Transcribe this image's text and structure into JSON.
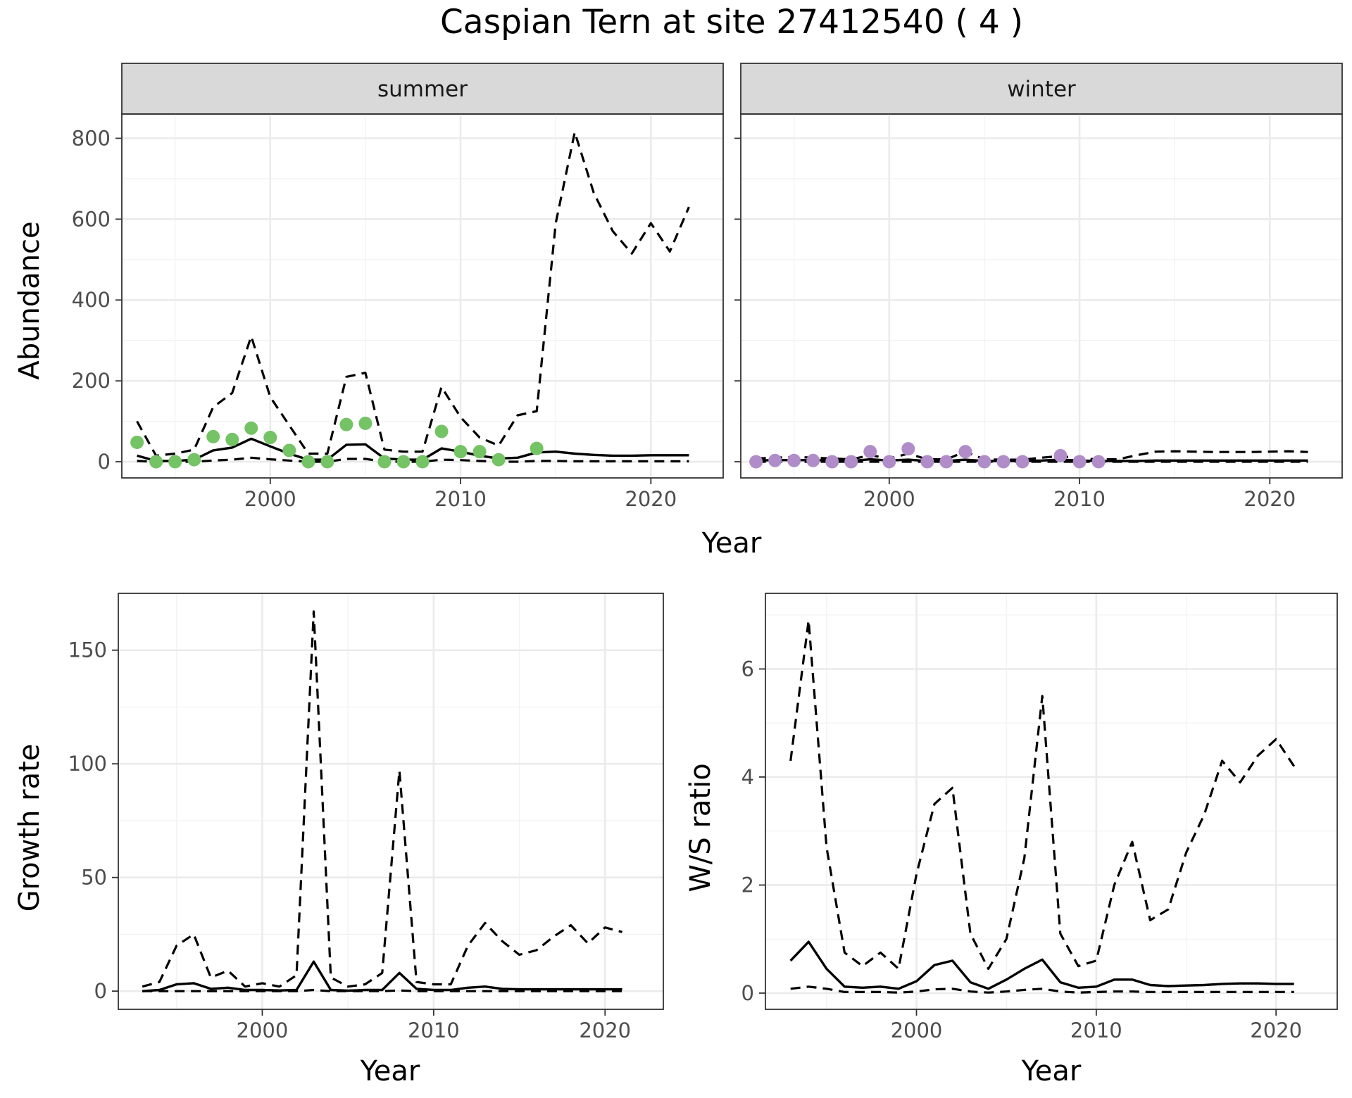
{
  "title": "Caspian Tern at site 27412540 ( 4 )",
  "chart_data": [
    {
      "type": "line",
      "facet": "summer",
      "xlabel": "Year",
      "ylabel": "Abundance",
      "xlim": [
        1992.2,
        2023.8
      ],
      "ylim": [
        -40,
        860
      ],
      "xticks": [
        2000,
        2010,
        2020
      ],
      "yticks": [
        0,
        200,
        400,
        600,
        800
      ],
      "point_color": "#74c365",
      "observed": {
        "x": [
          1993,
          1994,
          1995,
          1996,
          1997,
          1998,
          1999,
          2000,
          2001,
          2002,
          2003,
          2004,
          2005,
          2006,
          2007,
          2008,
          2009,
          2010,
          2011,
          2012,
          2014
        ],
        "y": [
          48,
          0,
          0,
          5,
          62,
          55,
          83,
          60,
          28,
          0,
          0,
          92,
          95,
          0,
          0,
          0,
          75,
          25,
          25,
          5,
          33
        ]
      },
      "mean": {
        "x": [
          1993,
          1994,
          1995,
          1996,
          1997,
          1998,
          1999,
          2000,
          2001,
          2002,
          2003,
          2004,
          2005,
          2006,
          2007,
          2008,
          2009,
          2010,
          2011,
          2012,
          2013,
          2014,
          2015,
          2016,
          2017,
          2018,
          2019,
          2020,
          2021,
          2022
        ],
        "y": [
          15,
          2,
          2,
          5,
          28,
          35,
          57,
          38,
          20,
          5,
          5,
          42,
          43,
          8,
          5,
          5,
          33,
          25,
          15,
          8,
          10,
          23,
          25,
          20,
          17,
          15,
          15,
          16,
          16,
          16
        ]
      },
      "upper": {
        "x": [
          1993,
          1994,
          1995,
          1996,
          1997,
          1998,
          1999,
          2000,
          2001,
          2002,
          2003,
          2004,
          2005,
          2006,
          2007,
          2008,
          2009,
          2010,
          2011,
          2012,
          2013,
          2014,
          2015,
          2016,
          2017,
          2018,
          2019,
          2020,
          2021,
          2022
        ],
        "y": [
          100,
          15,
          20,
          30,
          135,
          170,
          310,
          160,
          90,
          20,
          20,
          210,
          220,
          30,
          25,
          25,
          185,
          110,
          60,
          40,
          115,
          125,
          590,
          815,
          665,
          570,
          515,
          590,
          520,
          630
        ]
      },
      "lower": {
        "x": [
          1993,
          1994,
          1995,
          1996,
          1997,
          1998,
          1999,
          2000,
          2001,
          2002,
          2003,
          2004,
          2005,
          2006,
          2007,
          2008,
          2009,
          2010,
          2011,
          2012,
          2013,
          2014,
          2015,
          2016,
          2017,
          2018,
          2019,
          2020,
          2021,
          2022
        ],
        "y": [
          2,
          0,
          0,
          0,
          3,
          5,
          10,
          6,
          3,
          0,
          0,
          7,
          7,
          0,
          0,
          0,
          5,
          4,
          2,
          0,
          0,
          2,
          2,
          1,
          1,
          1,
          1,
          1,
          1,
          1
        ]
      }
    },
    {
      "type": "line",
      "facet": "winter",
      "xlabel": "Year",
      "ylabel": "Abundance",
      "xlim": [
        1992.2,
        2023.8
      ],
      "ylim": [
        -40,
        860
      ],
      "xticks": [
        2000,
        2010,
        2020
      ],
      "yticks": [
        0,
        200,
        400,
        600,
        800
      ],
      "point_color": "#b08dc8",
      "observed": {
        "x": [
          1993,
          1994,
          1995,
          1996,
          1997,
          1998,
          1999,
          2000,
          2001,
          2002,
          2003,
          2004,
          2005,
          2006,
          2007,
          2009,
          2010,
          2011
        ],
        "y": [
          0,
          3,
          3,
          3,
          0,
          0,
          25,
          0,
          32,
          0,
          0,
          25,
          0,
          0,
          0,
          15,
          0,
          0
        ]
      },
      "mean": {
        "x": [
          1993,
          1994,
          1995,
          1996,
          1997,
          1998,
          1999,
          2000,
          2001,
          2002,
          2003,
          2004,
          2005,
          2006,
          2007,
          2008,
          2009,
          2010,
          2011,
          2012,
          2013,
          2014,
          2015,
          2016,
          2017,
          2018,
          2019,
          2020,
          2021,
          2022
        ],
        "y": [
          3,
          4,
          4,
          4,
          3,
          2,
          6,
          3,
          5,
          2,
          2,
          5,
          2,
          2,
          2,
          3,
          5,
          3,
          2,
          2,
          2,
          3,
          3,
          3,
          3,
          3,
          3,
          3,
          3,
          3
        ]
      },
      "upper": {
        "x": [
          1993,
          1994,
          1995,
          1996,
          1997,
          1998,
          1999,
          2000,
          2001,
          2002,
          2003,
          2004,
          2005,
          2006,
          2007,
          2008,
          2009,
          2010,
          2011,
          2012,
          2013,
          2014,
          2015,
          2016,
          2017,
          2018,
          2019,
          2020,
          2021,
          2022
        ],
        "y": [
          8,
          10,
          12,
          10,
          8,
          6,
          16,
          8,
          20,
          6,
          6,
          25,
          6,
          5,
          5,
          10,
          14,
          8,
          6,
          6,
          16,
          25,
          26,
          25,
          24,
          24,
          24,
          25,
          26,
          24
        ]
      },
      "lower": {
        "x": [
          1993,
          1994,
          1995,
          1996,
          1997,
          1998,
          1999,
          2000,
          2001,
          2002,
          2003,
          2004,
          2005,
          2006,
          2007,
          2008,
          2009,
          2010,
          2011,
          2012,
          2013,
          2014,
          2015,
          2016,
          2017,
          2018,
          2019,
          2020,
          2021,
          2022
        ],
        "y": [
          0,
          0,
          0,
          0,
          0,
          0,
          0,
          0,
          0,
          0,
          0,
          0,
          0,
          0,
          0,
          0,
          0,
          0,
          0,
          0,
          0,
          0,
          0,
          0,
          0,
          0,
          0,
          0,
          0,
          0
        ]
      }
    },
    {
      "type": "line",
      "xlabel": "Year",
      "ylabel": "Growth rate",
      "xlim": [
        1991.6,
        2023.4
      ],
      "ylim": [
        -8,
        175
      ],
      "xticks": [
        2000,
        2010,
        2020
      ],
      "yticks": [
        0,
        50,
        100,
        150
      ],
      "mean": {
        "x": [
          1993,
          1994,
          1995,
          1996,
          1997,
          1998,
          1999,
          2000,
          2001,
          2002,
          2003,
          2004,
          2005,
          2006,
          2007,
          2008,
          2009,
          2010,
          2011,
          2012,
          2013,
          2014,
          2015,
          2016,
          2017,
          2018,
          2019,
          2020,
          2021
        ],
        "y": [
          0,
          0.5,
          3,
          3.5,
          1,
          1.5,
          0.5,
          0.5,
          0.3,
          0.5,
          13,
          0.5,
          0.2,
          0.5,
          0.5,
          8,
          1,
          0.5,
          0.5,
          1.5,
          2,
          1,
          0.8,
          0.8,
          0.8,
          0.8,
          0.8,
          0.8,
          0.8
        ]
      },
      "upper": {
        "x": [
          1993,
          1994,
          1995,
          1996,
          1997,
          1998,
          1999,
          2000,
          2001,
          2002,
          2003,
          2004,
          2005,
          2006,
          2007,
          2008,
          2009,
          2010,
          2011,
          2012,
          2013,
          2014,
          2015,
          2016,
          2017,
          2018,
          2019,
          2020,
          2021
        ],
        "y": [
          2,
          4,
          20,
          25,
          6,
          9,
          2,
          3.5,
          2,
          7,
          167,
          6,
          2,
          3,
          8,
          97,
          4,
          3,
          3,
          20,
          30,
          22,
          16,
          18,
          24,
          29,
          21,
          28,
          26
        ]
      },
      "lower": {
        "x": [
          1993,
          1994,
          1995,
          1996,
          1997,
          1998,
          1999,
          2000,
          2001,
          2002,
          2003,
          2004,
          2005,
          2006,
          2007,
          2008,
          2009,
          2010,
          2011,
          2012,
          2013,
          2014,
          2015,
          2016,
          2017,
          2018,
          2019,
          2020,
          2021
        ],
        "y": [
          0,
          0,
          0,
          0,
          0,
          0,
          0,
          0,
          0,
          0,
          0.5,
          0,
          0,
          0,
          0,
          0.3,
          0,
          0,
          0,
          0,
          0,
          0,
          0,
          0,
          0,
          0,
          0,
          0,
          0
        ]
      }
    },
    {
      "type": "line",
      "xlabel": "Year",
      "ylabel": "W/S ratio",
      "xlim": [
        1991.6,
        2023.4
      ],
      "ylim": [
        -0.3,
        7.4
      ],
      "xticks": [
        2000,
        2010,
        2020
      ],
      "yticks": [
        0,
        2,
        4,
        6
      ],
      "mean": {
        "x": [
          1993,
          1994,
          1995,
          1996,
          1997,
          1998,
          1999,
          2000,
          2001,
          2002,
          2003,
          2004,
          2005,
          2006,
          2007,
          2008,
          2009,
          2010,
          2011,
          2012,
          2013,
          2014,
          2015,
          2016,
          2017,
          2018,
          2019,
          2020,
          2021
        ],
        "y": [
          0.6,
          0.95,
          0.45,
          0.12,
          0.1,
          0.12,
          0.08,
          0.22,
          0.52,
          0.6,
          0.2,
          0.08,
          0.25,
          0.45,
          0.62,
          0.2,
          0.1,
          0.12,
          0.25,
          0.25,
          0.15,
          0.13,
          0.14,
          0.15,
          0.17,
          0.18,
          0.18,
          0.17,
          0.17
        ]
      },
      "upper": {
        "x": [
          1993,
          1994,
          1995,
          1996,
          1997,
          1998,
          1999,
          2000,
          2001,
          2002,
          2003,
          2004,
          2005,
          2006,
          2007,
          2008,
          2009,
          2010,
          2011,
          2012,
          2013,
          2014,
          2015,
          2016,
          2017,
          2018,
          2019,
          2020,
          2021
        ],
        "y": [
          4.3,
          6.9,
          2.7,
          0.75,
          0.5,
          0.75,
          0.45,
          2.2,
          3.5,
          3.8,
          1.1,
          0.45,
          1.0,
          2.5,
          5.5,
          1.1,
          0.5,
          0.6,
          2.0,
          2.8,
          1.35,
          1.55,
          2.6,
          3.3,
          4.3,
          3.9,
          4.4,
          4.7,
          4.2
        ]
      },
      "lower": {
        "x": [
          1993,
          1994,
          1995,
          1996,
          1997,
          1998,
          1999,
          2000,
          2001,
          2002,
          2003,
          2004,
          2005,
          2006,
          2007,
          2008,
          2009,
          2010,
          2011,
          2012,
          2013,
          2014,
          2015,
          2016,
          2017,
          2018,
          2019,
          2020,
          2021
        ],
        "y": [
          0.08,
          0.12,
          0.08,
          0.02,
          0.02,
          0.02,
          0.01,
          0.03,
          0.07,
          0.08,
          0.03,
          0.01,
          0.03,
          0.06,
          0.08,
          0.03,
          0.01,
          0.02,
          0.03,
          0.03,
          0.02,
          0.02,
          0.02,
          0.02,
          0.02,
          0.02,
          0.02,
          0.02,
          0.02
        ]
      }
    }
  ]
}
